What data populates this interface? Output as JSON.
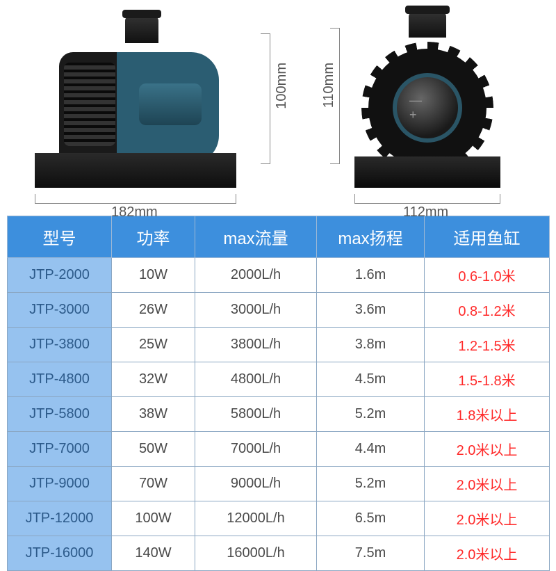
{
  "dimensions": {
    "side_width": "182mm",
    "side_height": "100mm",
    "front_width": "112mm",
    "front_height": "110mm"
  },
  "table": {
    "headers": {
      "model": "型号",
      "power": "功率",
      "flow": "max流量",
      "head": "max扬程",
      "tank": "适用鱼缸"
    },
    "header_bg": "#3d8fdd",
    "header_text_color": "#ffffff",
    "model_cell_bg": "#96c2ef",
    "border_color": "#8aa6c2",
    "tank_text_color": "#ff2a2a",
    "body_text_color": "#4a4a4a",
    "rows": [
      {
        "model": "JTP-2000",
        "power": "10W",
        "flow": "2000L/h",
        "head": "1.6m",
        "tank": "0.6-1.0米"
      },
      {
        "model": "JTP-3000",
        "power": "26W",
        "flow": "3000L/h",
        "head": "3.6m",
        "tank": "0.8-1.2米"
      },
      {
        "model": "JTP-3800",
        "power": "25W",
        "flow": "3800L/h",
        "head": "3.8m",
        "tank": "1.2-1.5米"
      },
      {
        "model": "JTP-4800",
        "power": "32W",
        "flow": "4800L/h",
        "head": "4.5m",
        "tank": "1.5-1.8米"
      },
      {
        "model": "JTP-5800",
        "power": "38W",
        "flow": "5800L/h",
        "head": "5.2m",
        "tank": "1.8米以上"
      },
      {
        "model": "JTP-7000",
        "power": "50W",
        "flow": "7000L/h",
        "head": "4.4m",
        "tank": "2.0米以上"
      },
      {
        "model": "JTP-9000",
        "power": "70W",
        "flow": "9000L/h",
        "head": "5.2m",
        "tank": "2.0米以上"
      },
      {
        "model": "JTP-12000",
        "power": "100W",
        "flow": "12000L/h",
        "head": "6.5m",
        "tank": "2.0米以上"
      },
      {
        "model": "JTP-16000",
        "power": "140W",
        "flow": "16000L/h",
        "head": "7.5m",
        "tank": "2.0米以上"
      }
    ]
  }
}
